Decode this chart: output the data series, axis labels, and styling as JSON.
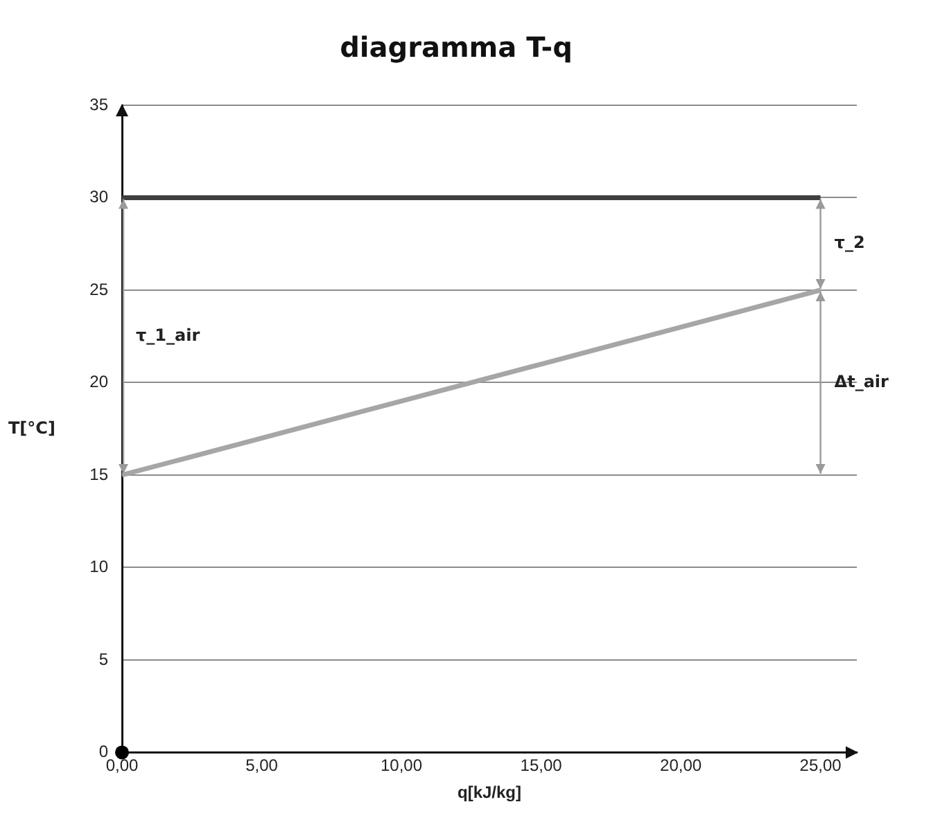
{
  "chart_data": {
    "type": "line",
    "title": "diagramma T-q",
    "xlabel": "q[kJ/kg]",
    "ylabel": "T[°C]",
    "x": [
      0,
      5,
      10,
      15,
      20,
      25
    ],
    "series": [
      {
        "color": "#404040",
        "values": [
          30,
          30,
          30,
          30,
          30,
          30
        ]
      },
      {
        "color": "#a6a6a6",
        "values": [
          15,
          17,
          19,
          21,
          23,
          25
        ]
      }
    ],
    "xlim": [
      0,
      26.3
    ],
    "xticks": [
      {
        "value": 0,
        "label": "0,00"
      },
      {
        "value": 5,
        "label": "5,00"
      },
      {
        "value": 10,
        "label": "10,00"
      },
      {
        "value": 15,
        "label": "15,00"
      },
      {
        "value": 20,
        "label": "20,00"
      },
      {
        "value": 25,
        "label": "25,00"
      }
    ],
    "ylim": [
      0,
      35
    ],
    "yticks": [
      0,
      5,
      10,
      15,
      20,
      25,
      30,
      35
    ],
    "grid": "y",
    "legend": false,
    "marker": "none",
    "line_style": "solid",
    "annotations": [
      "τ_1_air",
      "τ_2",
      "Δt_air"
    ]
  }
}
